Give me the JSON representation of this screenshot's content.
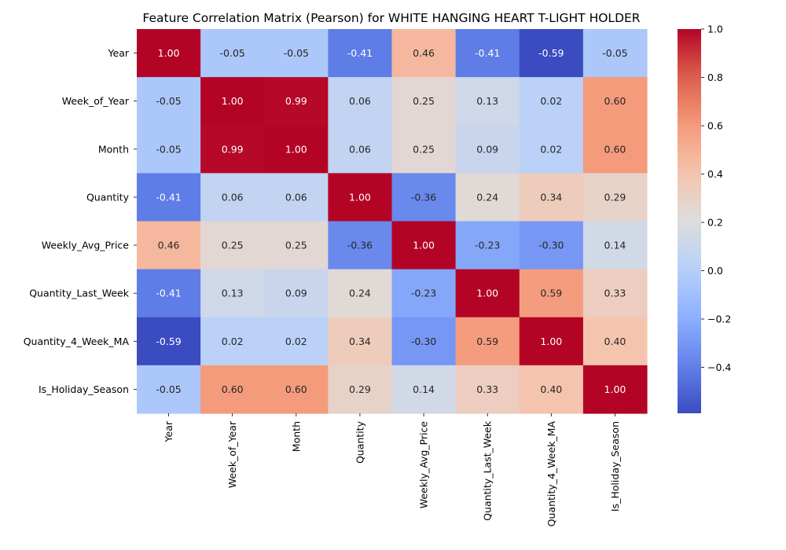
{
  "chart_data": {
    "type": "heatmap",
    "title": "Feature Correlation Matrix (Pearson) for WHITE HANGING HEART T-LIGHT HOLDER",
    "rows": [
      "Year",
      "Week_of_Year",
      "Month",
      "Quantity",
      "Weekly_Avg_Price",
      "Quantity_Last_Week",
      "Quantity_4_Week_MA",
      "Is_Holiday_Season"
    ],
    "columns": [
      "Year",
      "Week_of_Year",
      "Month",
      "Quantity",
      "Weekly_Avg_Price",
      "Quantity_Last_Week",
      "Quantity_4_Week_MA",
      "Is_Holiday_Season"
    ],
    "values": [
      [
        1.0,
        -0.05,
        -0.05,
        -0.41,
        0.46,
        -0.41,
        -0.59,
        -0.05
      ],
      [
        -0.05,
        1.0,
        0.99,
        0.06,
        0.25,
        0.13,
        0.02,
        0.6
      ],
      [
        -0.05,
        0.99,
        1.0,
        0.06,
        0.25,
        0.09,
        0.02,
        0.6
      ],
      [
        -0.41,
        0.06,
        0.06,
        1.0,
        -0.36,
        0.24,
        0.34,
        0.29
      ],
      [
        0.46,
        0.25,
        0.25,
        -0.36,
        1.0,
        -0.23,
        -0.3,
        0.14
      ],
      [
        -0.41,
        0.13,
        0.09,
        0.24,
        -0.23,
        1.0,
        0.59,
        0.33
      ],
      [
        -0.59,
        0.02,
        0.02,
        0.34,
        -0.3,
        0.59,
        1.0,
        0.4
      ],
      [
        -0.05,
        0.6,
        0.6,
        0.29,
        0.14,
        0.33,
        0.4,
        1.0
      ]
    ],
    "color_scale": {
      "colormap": "coolwarm",
      "min": -0.59,
      "max": 1.0
    },
    "colorbar_ticks": [
      1.0,
      0.8,
      0.6,
      0.4,
      0.2,
      0.0,
      -0.2,
      -0.4
    ],
    "colorbar_tick_labels": [
      "1.0",
      "0.8",
      "0.6",
      "0.4",
      "0.2",
      "0.0",
      "−0.2",
      "−0.4"
    ],
    "colorbar_placement": "right",
    "value_format": "2 decimals",
    "grid": false
  }
}
